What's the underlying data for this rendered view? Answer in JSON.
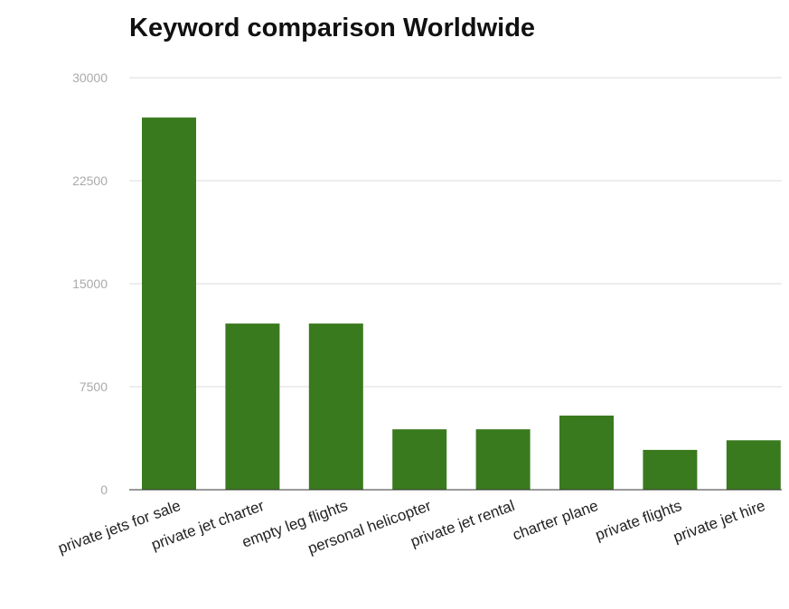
{
  "chart_data": {
    "type": "bar",
    "title": "Keyword comparison Worldwide",
    "xlabel": "",
    "ylabel": "",
    "categories": [
      "private jets for sale",
      "private jet charter",
      "empty leg flights",
      "personal helicopter",
      "private jet rental",
      "charter plane",
      "private flights",
      "private jet hire"
    ],
    "values": [
      27100,
      12100,
      12100,
      4400,
      4400,
      5400,
      2900,
      3600
    ],
    "yticks": [
      0,
      7500,
      15000,
      22500,
      30000
    ],
    "ylim": [
      0,
      30000
    ],
    "grid": true,
    "legend": "none",
    "bar_color": "#3a7a1e"
  }
}
